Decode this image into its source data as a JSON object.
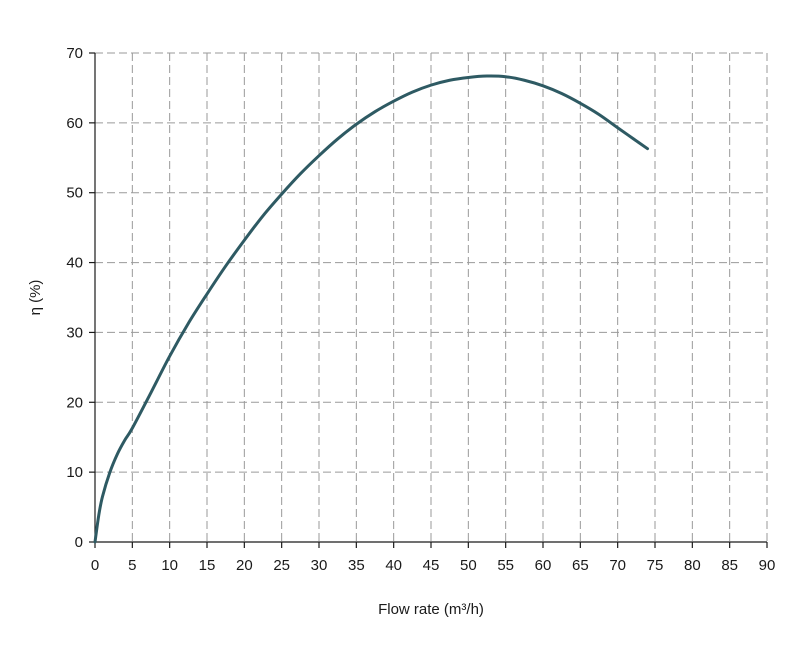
{
  "chart_data": {
    "type": "line",
    "xlabel": "Flow rate (m³/h)",
    "ylabel": "η (%)",
    "xlim": [
      0,
      90
    ],
    "ylim": [
      0,
      70
    ],
    "xticks": [
      0,
      5,
      10,
      15,
      20,
      25,
      30,
      35,
      40,
      45,
      50,
      55,
      60,
      65,
      70,
      75,
      80,
      85,
      90
    ],
    "yticks": [
      0,
      10,
      20,
      30,
      40,
      50,
      60,
      70
    ],
    "grid": true,
    "line_color": "#2e5a63",
    "series": [
      {
        "x": [
          0,
          0.5,
          1,
          2,
          3,
          4,
          5,
          7.5,
          10,
          12.5,
          15,
          17.5,
          20,
          22.5,
          25,
          27.5,
          30,
          32.5,
          35,
          37.5,
          40,
          42.5,
          45,
          47.5,
          50,
          52.5,
          55,
          57.5,
          60,
          62.5,
          65,
          67.5,
          70,
          72,
          74
        ],
        "y": [
          0,
          3.8,
          6.5,
          10,
          12.6,
          14.6,
          16.3,
          21.4,
          26.6,
          31.3,
          35.5,
          39.5,
          43.2,
          46.7,
          49.8,
          52.7,
          55.3,
          57.7,
          59.8,
          61.6,
          63.1,
          64.4,
          65.4,
          66.1,
          66.5,
          66.7,
          66.6,
          66.1,
          65.3,
          64.2,
          62.8,
          61.2,
          59.3,
          57.8,
          56.3
        ]
      }
    ]
  }
}
